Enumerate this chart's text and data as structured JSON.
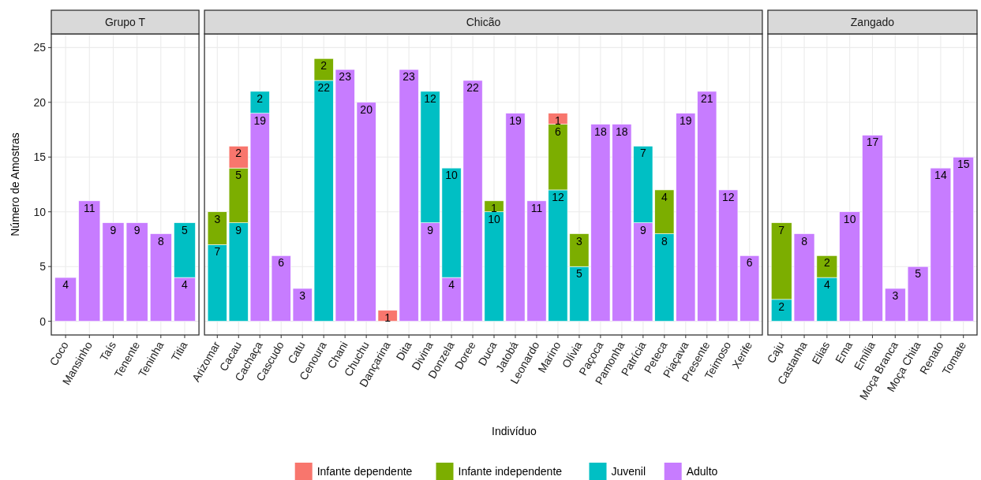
{
  "chart_data": [
    {
      "type": "bar",
      "title": "Grupo T",
      "ylabel": "Número de Amostras",
      "stacked": true,
      "data_labels": true,
      "grid": true,
      "ylim": [
        -1.25,
        26.25
      ],
      "yticks": [
        0,
        5,
        10,
        15,
        20,
        25
      ],
      "categories": [
        "Coco",
        "Mansinho",
        "Taís",
        "Tenente",
        "Teninha",
        "Titia"
      ],
      "series": [
        {
          "color": "#c77cff",
          "values": [
            4,
            11,
            9,
            9,
            8,
            4
          ]
        },
        {
          "color": "#00bfc4",
          "values": [
            null,
            null,
            null,
            null,
            null,
            5
          ]
        }
      ]
    },
    {
      "type": "bar",
      "title": "Chicão",
      "xlabel": "Indivíduo",
      "stacked": true,
      "data_labels": true,
      "grid": true,
      "legend": "bottom",
      "tick_labels": "x",
      "ylim": [
        -1.25,
        26.25
      ],
      "yticks": [
        0,
        5,
        10,
        15,
        20,
        25
      ],
      "categories": [
        "Arizomar",
        "Cacau",
        "Cachaça",
        "Cascudo",
        "Catu",
        "Cenoura",
        "Chani",
        "Chuchu",
        "Dançarina",
        "Dita",
        "Divina",
        "Donzela",
        "Doree",
        "Duca",
        "Jatobá",
        "Leonardo",
        "Marino",
        "Olívia",
        "Paçoca",
        "Pamonha",
        "Patrícia",
        "Peteca",
        "Piaçava",
        "Presente",
        "Teimoso",
        "Xerife"
      ],
      "series": [
        {
          "name": "Adulto",
          "color": "#c77cff",
          "values": [
            null,
            null,
            19,
            6,
            3,
            null,
            23,
            20,
            null,
            23,
            9,
            4,
            22,
            null,
            19,
            11,
            null,
            null,
            18,
            18,
            9,
            null,
            19,
            21,
            12,
            6
          ]
        },
        {
          "name": "Juvenil",
          "color": "#00bfc4",
          "values": [
            7,
            9,
            2,
            null,
            null,
            22,
            null,
            null,
            null,
            null,
            12,
            10,
            null,
            10,
            null,
            null,
            12,
            5,
            null,
            null,
            7,
            8,
            null,
            null,
            null,
            null
          ]
        },
        {
          "name": "Infante independente",
          "color": "#7cae00",
          "values": [
            3,
            5,
            null,
            null,
            null,
            2,
            null,
            null,
            null,
            null,
            null,
            null,
            null,
            1,
            null,
            null,
            6,
            3,
            null,
            null,
            null,
            4,
            null,
            null,
            null,
            null
          ]
        },
        {
          "name": "Infante dependente",
          "color": "#f8766d",
          "values": [
            null,
            2,
            null,
            null,
            null,
            null,
            null,
            null,
            1,
            null,
            null,
            null,
            null,
            null,
            null,
            null,
            1,
            null,
            null,
            null,
            null,
            null,
            null,
            null,
            null,
            null
          ]
        }
      ]
    },
    {
      "type": "bar",
      "title": "Zangado",
      "stacked": true,
      "data_labels": true,
      "grid": true,
      "tick_labels": "x",
      "ylim": [
        -1.25,
        26.25
      ],
      "yticks": [
        0,
        5,
        10,
        15,
        20,
        25
      ],
      "categories": [
        "Caju",
        "Castanha",
        "Elias",
        "Ema",
        "Emília",
        "Moça Branca",
        "Moça Chita",
        "Renato",
        "Tomate"
      ],
      "series": [
        {
          "color": "#c77cff",
          "values": [
            null,
            8,
            null,
            10,
            17,
            3,
            5,
            14,
            15
          ]
        },
        {
          "color": "#00bfc4",
          "values": [
            2,
            null,
            4,
            null,
            null,
            null,
            null,
            null,
            null
          ]
        },
        {
          "color": "#7cae00",
          "values": [
            7,
            null,
            2,
            null,
            null,
            null,
            null,
            null,
            null
          ]
        }
      ]
    }
  ]
}
